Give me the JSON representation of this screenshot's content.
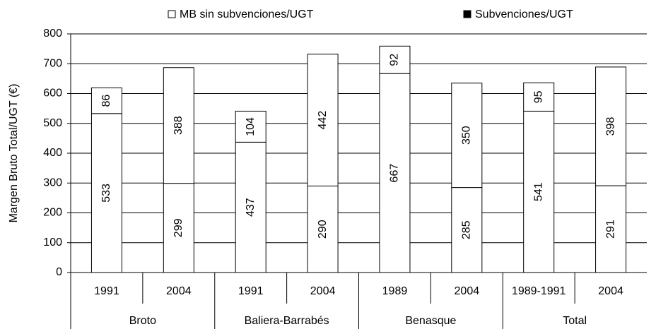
{
  "chart_data": {
    "type": "stacked_bar",
    "ylabel": "Margen Bruto Total/UGT (€)",
    "categories": [
      "1991",
      "2004",
      "1991",
      "2004",
      "1989",
      "2004",
      "1989-1991",
      "2004"
    ],
    "groups": [
      "Broto",
      "Baliera-Barrabés",
      "Benasque",
      "Total"
    ],
    "series": [
      {
        "name": "MB sin subvenciones/UGT",
        "color": "#ffffff",
        "marker_color": "#ffffff",
        "values": [
          533,
          299,
          437,
          290,
          667,
          285,
          541,
          291
        ]
      },
      {
        "name": "Subvenciones/UGT",
        "color": "#ffffff",
        "marker_color": "#000000",
        "values": [
          86,
          388,
          104,
          442,
          92,
          350,
          95,
          398
        ]
      }
    ],
    "ylim": [
      0,
      800
    ],
    "yticks": [
      0,
      100,
      200,
      300,
      400,
      500,
      600,
      700,
      800
    ],
    "grid": true
  }
}
